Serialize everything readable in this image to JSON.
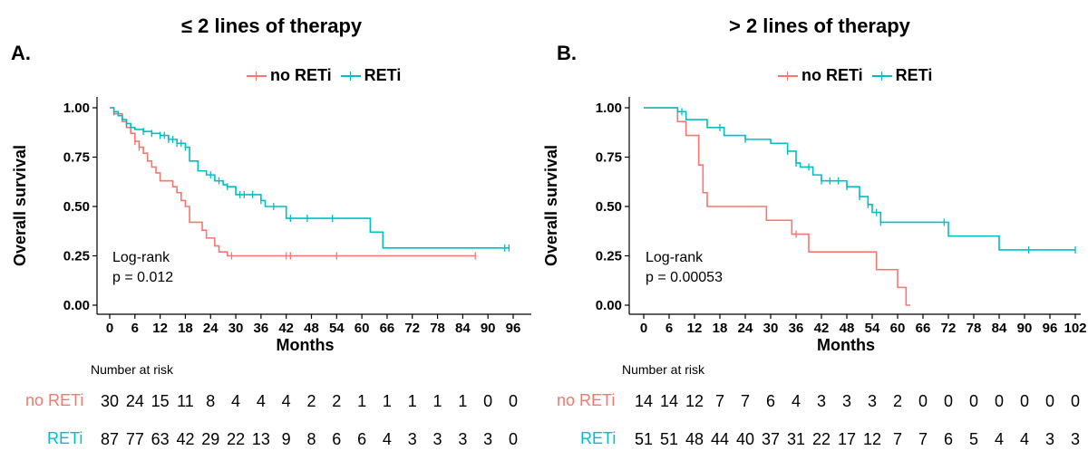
{
  "colors": {
    "no_reti": "#F8766D",
    "reti": "#00BFC4"
  },
  "panels": [
    {
      "id": "a",
      "panel_label": "A.",
      "title": "≤ 2 lines of therapy",
      "legend": [
        "no RETi",
        "RETi"
      ],
      "xlabel": "Months",
      "ylabel": "Overall survival",
      "x_ticks": [
        "0",
        "6",
        "12",
        "18",
        "24",
        "30",
        "36",
        "42",
        "48",
        "54",
        "60",
        "66",
        "72",
        "78",
        "84",
        "90",
        "96"
      ],
      "y_ticks": [
        "0.00",
        "0.25",
        "0.50",
        "0.75",
        "1.00"
      ],
      "logrank_label": "Log-rank",
      "p_value": "p = 0.012",
      "risk_title": "Number at risk",
      "risk_rows": [
        {
          "label": "no RETi",
          "values": [
            "30",
            "24",
            "15",
            "11",
            "8",
            "4",
            "4",
            "4",
            "2",
            "2",
            "1",
            "1",
            "1",
            "1",
            "1",
            "0",
            "0"
          ]
        },
        {
          "label": "RETi",
          "values": [
            "87",
            "77",
            "63",
            "42",
            "29",
            "22",
            "13",
            "9",
            "8",
            "6",
            "6",
            "4",
            "3",
            "3",
            "3",
            "3",
            "0"
          ]
        }
      ]
    },
    {
      "id": "b",
      "panel_label": "B.",
      "title": "> 2 lines of therapy",
      "legend": [
        "no RETi",
        "RETi"
      ],
      "xlabel": "Months",
      "ylabel": "Overall survival",
      "x_ticks": [
        "0",
        "6",
        "12",
        "18",
        "24",
        "30",
        "36",
        "42",
        "48",
        "54",
        "60",
        "66",
        "72",
        "78",
        "84",
        "90",
        "96",
        "102"
      ],
      "y_ticks": [
        "0.00",
        "0.25",
        "0.50",
        "0.75",
        "1.00"
      ],
      "logrank_label": "Log-rank",
      "p_value": "p = 0.00053",
      "risk_title": "Number at risk",
      "risk_rows": [
        {
          "label": "no RETi",
          "values": [
            "14",
            "14",
            "12",
            "7",
            "7",
            "6",
            "4",
            "3",
            "3",
            "3",
            "2",
            "0",
            "0",
            "0",
            "0",
            "0",
            "0",
            "0"
          ]
        },
        {
          "label": "RETi",
          "values": [
            "51",
            "51",
            "48",
            "44",
            "40",
            "37",
            "31",
            "22",
            "17",
            "12",
            "7",
            "7",
            "6",
            "5",
            "4",
            "4",
            "3",
            "3"
          ]
        }
      ]
    }
  ],
  "chart_data": [
    {
      "type": "line",
      "title": "≤ 2 lines of therapy",
      "xlabel": "Months",
      "ylabel": "Overall survival",
      "xlim": [
        0,
        96
      ],
      "ylim": [
        0,
        1
      ],
      "series": [
        {
          "name": "no RETi",
          "x": [
            0,
            1,
            3,
            4,
            5,
            6,
            7,
            8,
            9,
            10,
            11,
            12,
            15,
            16,
            17,
            18,
            19,
            22,
            23,
            25,
            26,
            28,
            29,
            87
          ],
          "y": [
            1.0,
            0.97,
            0.93,
            0.9,
            0.87,
            0.83,
            0.8,
            0.77,
            0.73,
            0.7,
            0.67,
            0.63,
            0.6,
            0.57,
            0.53,
            0.5,
            0.42,
            0.38,
            0.34,
            0.3,
            0.27,
            0.25,
            0.25,
            0.25
          ],
          "censored_x": [
            6,
            7,
            29,
            42,
            43,
            54,
            87
          ]
        },
        {
          "name": "RETi",
          "x": [
            0,
            1,
            2,
            3,
            4,
            5,
            6,
            8,
            10,
            12,
            14,
            16,
            18,
            19,
            21,
            23,
            25,
            27,
            28,
            30,
            33,
            36,
            37,
            42,
            53,
            62,
            65,
            95
          ],
          "y": [
            1.0,
            0.98,
            0.96,
            0.94,
            0.92,
            0.9,
            0.89,
            0.88,
            0.87,
            0.86,
            0.84,
            0.82,
            0.8,
            0.73,
            0.68,
            0.66,
            0.63,
            0.61,
            0.6,
            0.56,
            0.56,
            0.53,
            0.5,
            0.44,
            0.44,
            0.37,
            0.29,
            0.29
          ],
          "censored_x": [
            1,
            4,
            8,
            10,
            12,
            13,
            14,
            15,
            16,
            17,
            18,
            24,
            26,
            28,
            31,
            32,
            34,
            36,
            39,
            43,
            47,
            53,
            94,
            95
          ]
        }
      ]
    },
    {
      "type": "line",
      "title": "> 2 lines of therapy",
      "xlabel": "Months",
      "ylabel": "Overall survival",
      "xlim": [
        0,
        102
      ],
      "ylim": [
        0,
        1
      ],
      "series": [
        {
          "name": "no RETi",
          "x": [
            0,
            7,
            8,
            10,
            13,
            14,
            15,
            29,
            35,
            39,
            55,
            60,
            62,
            63
          ],
          "y": [
            1.0,
            1.0,
            0.93,
            0.86,
            0.71,
            0.57,
            0.5,
            0.43,
            0.36,
            0.27,
            0.18,
            0.09,
            0.0,
            0.0
          ],
          "censored_x": [
            36
          ]
        },
        {
          "name": "RETi",
          "x": [
            0,
            8,
            10,
            15,
            19,
            24,
            30,
            34,
            36,
            37,
            40,
            42,
            48,
            51,
            53,
            54,
            56,
            72,
            84,
            102
          ],
          "y": [
            1.0,
            0.98,
            0.94,
            0.9,
            0.86,
            0.84,
            0.82,
            0.78,
            0.72,
            0.7,
            0.66,
            0.63,
            0.6,
            0.55,
            0.51,
            0.47,
            0.42,
            0.35,
            0.28,
            0.28
          ],
          "censored_x": [
            9,
            18,
            24,
            34,
            36,
            39,
            42,
            44,
            46,
            48,
            51,
            53,
            55,
            56,
            71,
            91,
            102
          ]
        }
      ]
    }
  ]
}
